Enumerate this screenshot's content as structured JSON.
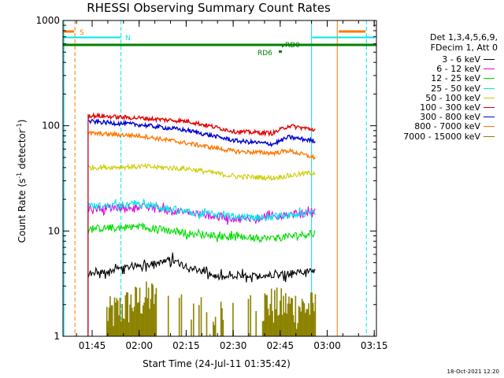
{
  "chart_data": {
    "type": "line",
    "title": "RHESSI Observing Summary Count Rates",
    "xlabel": "Start Time (24-Jul-11 01:35:42)",
    "ylabel_main": "Count Rate (s",
    "ylabel_sup1": "-1",
    "ylabel_mid": " detector",
    "ylabel_sup2": "-1",
    "ylabel_end": ")",
    "yscale": "log",
    "ylim": [
      1,
      1000
    ],
    "xlim_minutes": [
      0,
      100
    ],
    "x_ticks": [
      {
        "label": "01:45",
        "minute": 9.3
      },
      {
        "label": "02:00",
        "minute": 24.3
      },
      {
        "label": "02:15",
        "minute": 39.3
      },
      {
        "label": "02:30",
        "minute": 54.3
      },
      {
        "label": "02:45",
        "minute": 69.3
      },
      {
        "label": "03:00",
        "minute": 84.3
      },
      {
        "label": "03:15",
        "minute": 99.3
      }
    ],
    "y_ticks": [
      {
        "label": "1",
        "value": 1
      },
      {
        "label": "10",
        "value": 10
      },
      {
        "label": "100",
        "value": 100
      },
      {
        "label": "1000",
        "value": 1000
      }
    ],
    "legend_header": [
      "Det 1,3,4,5,6,9,",
      "FDecim 1, Att 0"
    ],
    "series": [
      {
        "name": "3 - 6 keV",
        "color": "#000000",
        "values": [
          [
            8,
            3.8
          ],
          [
            20,
            4.5
          ],
          [
            35,
            5.2
          ],
          [
            50,
            3.6
          ],
          [
            65,
            3.8
          ],
          [
            80,
            4.2
          ]
        ]
      },
      {
        "name": "6 - 12 keV",
        "color": "#e600e6",
        "values": [
          [
            8,
            16
          ],
          [
            25,
            17
          ],
          [
            40,
            15
          ],
          [
            55,
            13
          ],
          [
            70,
            14
          ],
          [
            80,
            15.5
          ]
        ]
      },
      {
        "name": "12 - 25 keV",
        "color": "#00dc00",
        "values": [
          [
            8,
            10.5
          ],
          [
            25,
            11
          ],
          [
            40,
            9.5
          ],
          [
            55,
            8.7
          ],
          [
            67,
            8.5
          ],
          [
            80,
            9.5
          ]
        ]
      },
      {
        "name": "25 - 50 keV",
        "color": "#00e6e6",
        "values": [
          [
            8,
            17
          ],
          [
            25,
            18
          ],
          [
            40,
            15
          ],
          [
            55,
            13.5
          ],
          [
            67,
            13.5
          ],
          [
            80,
            15
          ]
        ]
      },
      {
        "name": "50 - 100 keV",
        "color": "#cccc00",
        "values": [
          [
            8,
            40
          ],
          [
            25,
            41
          ],
          [
            40,
            39
          ],
          [
            55,
            33
          ],
          [
            67,
            32
          ],
          [
            80,
            36
          ]
        ]
      },
      {
        "name": "100 - 300 keV",
        "color": "#e60000",
        "values": [
          [
            8,
            125
          ],
          [
            25,
            118
          ],
          [
            40,
            110
          ],
          [
            55,
            88
          ],
          [
            67,
            85
          ],
          [
            72,
            100
          ],
          [
            80,
            92
          ]
        ]
      },
      {
        "name": "300 - 800 keV",
        "color": "#0000d2",
        "values": [
          [
            8,
            110
          ],
          [
            25,
            102
          ],
          [
            40,
            90
          ],
          [
            55,
            72
          ],
          [
            67,
            67
          ],
          [
            72,
            78
          ],
          [
            80,
            72
          ]
        ]
      },
      {
        "name": "800 - 7000 keV",
        "color": "#ff7800",
        "values": [
          [
            8,
            85
          ],
          [
            25,
            80
          ],
          [
            40,
            68
          ],
          [
            55,
            57
          ],
          [
            67,
            55
          ],
          [
            72,
            58
          ],
          [
            80,
            50
          ]
        ]
      },
      {
        "name": "7000 - 15000 keV",
        "color": "#8c8200",
        "values": [
          [
            15,
            1.6
          ],
          [
            25,
            2.2
          ],
          [
            35,
            2.5
          ],
          [
            45,
            1.5
          ],
          [
            65,
            2
          ],
          [
            80,
            1.8
          ]
        ]
      }
    ],
    "flag_labels": [
      {
        "text": "S",
        "color": "#ff7800"
      },
      {
        "text": "N",
        "color": "#00e6e6"
      },
      {
        "text": "RD6",
        "color": "#008200"
      },
      {
        "text": "RD0",
        "color": "#008200"
      }
    ]
  },
  "footer": {
    "timestamp": "18-Oct-2021 12:20"
  }
}
